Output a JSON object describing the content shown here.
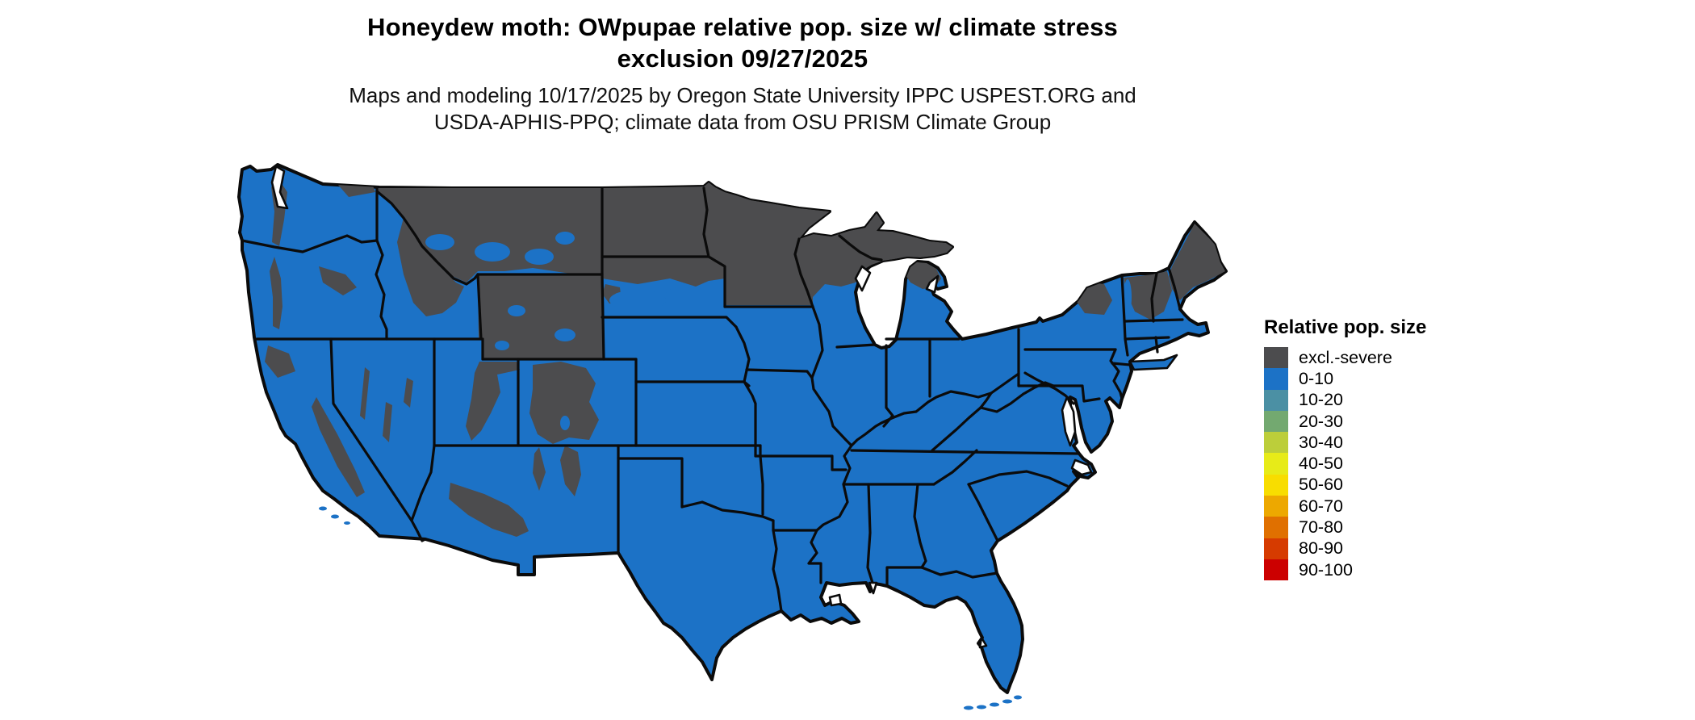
{
  "header": {
    "title_line1": "Honeydew moth: OWpupae relative pop. size w/ climate stress",
    "title_line2": "exclusion 09/27/2025",
    "subtitle_line1": "Maps and modeling 10/17/2025 by Oregon State University IPPC USPEST.ORG and",
    "subtitle_line2": "USDA-APHIS-PPQ; climate data from OSU PRISM Climate Group"
  },
  "legend": {
    "title": "Relative pop. size",
    "items": [
      {
        "label": "excl.-severe",
        "color": "#4c4c4e"
      },
      {
        "label": "0-10",
        "color": "#1c72c6"
      },
      {
        "label": "10-20",
        "color": "#4b90a4"
      },
      {
        "label": "20-30",
        "color": "#73a970"
      },
      {
        "label": "30-40",
        "color": "#bcce3a"
      },
      {
        "label": "40-50",
        "color": "#e7eb18"
      },
      {
        "label": "50-60",
        "color": "#f8dd00"
      },
      {
        "label": "60-70",
        "color": "#eda800"
      },
      {
        "label": "70-80",
        "color": "#e07000"
      },
      {
        "label": "80-90",
        "color": "#d63b00"
      },
      {
        "label": "90-100",
        "color": "#cc0000"
      }
    ]
  },
  "map": {
    "region": "Continental United States",
    "base_class": "0-10",
    "base_color": "#1c72c6",
    "excluded_class": "excl.-severe",
    "excluded_color": "#4c4c4e",
    "border_color": "#0b0b0b",
    "water_color": "#ffffff"
  }
}
